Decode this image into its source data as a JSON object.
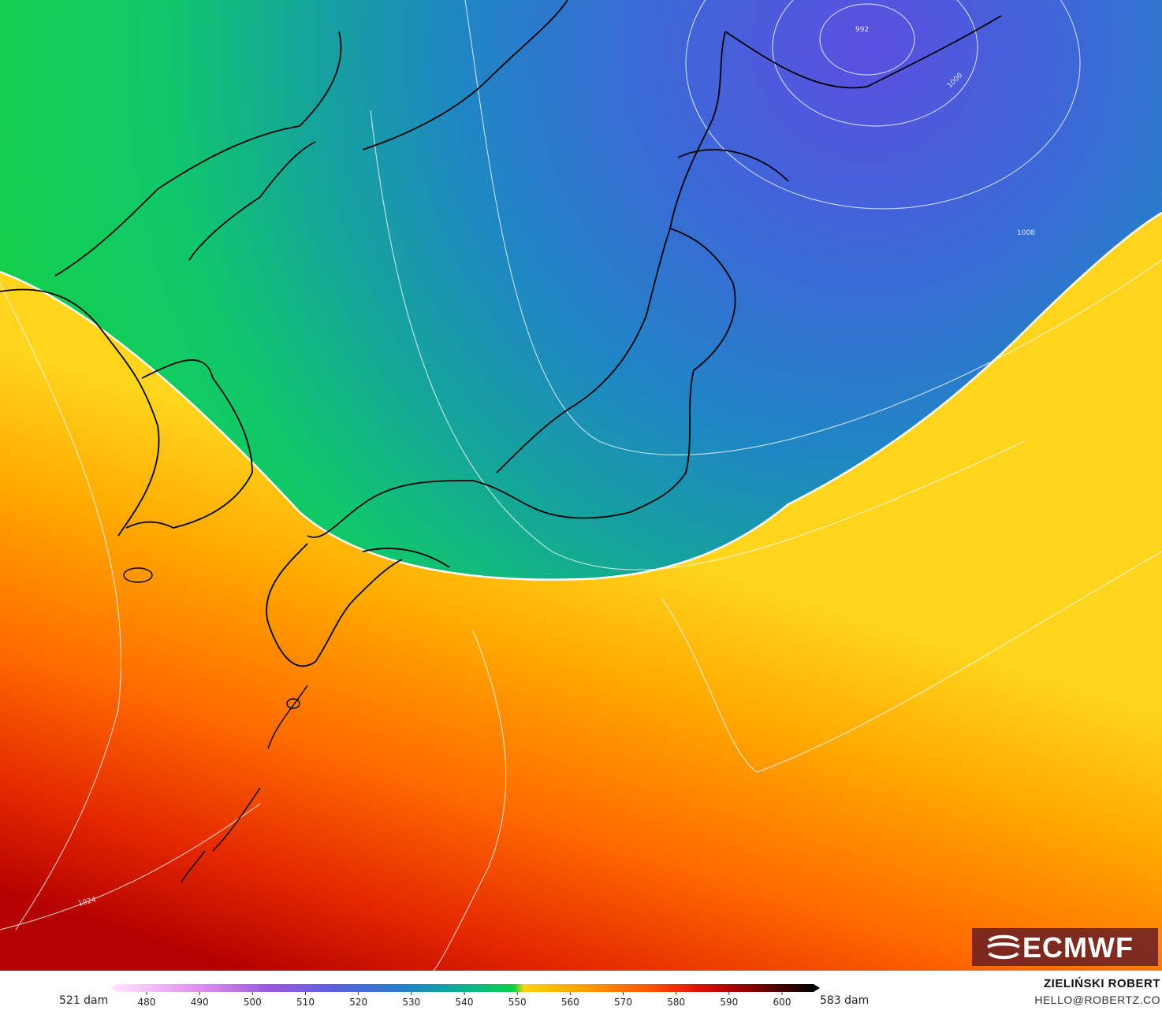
{
  "map": {
    "colors": {
      "blue_low": "#4a5ad8",
      "blue": "#1f7fc8",
      "teal": "#16a39a",
      "green": "#10d050",
      "yellow": "#ffd21e",
      "orange": "#ff8a00",
      "red": "#e43000",
      "dark_red": "#b00000"
    },
    "isobar_labels": [
      "992",
      "1000",
      "1008",
      "1024"
    ]
  },
  "legend": {
    "min_label": "521 dam",
    "max_label": "583 dam",
    "ticks": [
      "480",
      "490",
      "500",
      "510",
      "520",
      "530",
      "540",
      "550",
      "560",
      "570",
      "580",
      "590",
      "600"
    ]
  },
  "branding": {
    "logo_text": "ECMWF",
    "author": "ZIELIŃSKI ROBERT",
    "email": "HELLO@ROBERTZ.CO"
  }
}
